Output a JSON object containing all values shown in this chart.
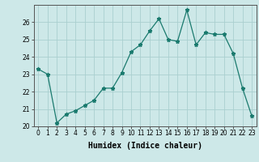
{
  "xlabel": "Humidex (Indice chaleur)",
  "ylabel": "",
  "x_values": [
    0,
    1,
    2,
    3,
    4,
    5,
    6,
    7,
    8,
    9,
    10,
    11,
    12,
    13,
    14,
    15,
    16,
    17,
    18,
    19,
    20,
    21,
    22,
    23
  ],
  "y_values": [
    23.3,
    23.0,
    20.2,
    20.7,
    20.9,
    21.2,
    21.5,
    22.2,
    22.2,
    23.1,
    24.3,
    24.7,
    25.5,
    26.2,
    25.0,
    24.9,
    26.7,
    24.7,
    25.4,
    25.3,
    25.3,
    24.2,
    22.2,
    20.6
  ],
  "line_color": "#1a7a6e",
  "marker": "*",
  "marker_size": 3.5,
  "bg_color": "#cde8e8",
  "grid_color": "#aacfcf",
  "axis_color": "#555555",
  "ylim": [
    20,
    27
  ],
  "yticks": [
    20,
    21,
    22,
    23,
    24,
    25,
    26
  ],
  "xlim": [
    -0.5,
    23.5
  ],
  "tick_fontsize": 5.5,
  "xlabel_fontsize": 7
}
